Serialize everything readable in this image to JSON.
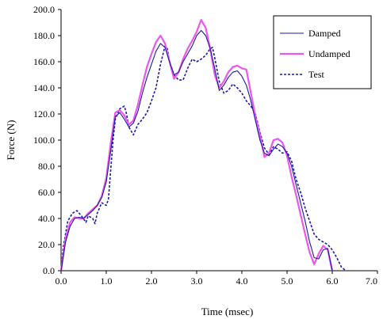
{
  "chart_data": {
    "type": "line",
    "xlabel": "Time (msec)",
    "ylabel": "Force (N)",
    "xlim": [
      0,
      7
    ],
    "ylim": [
      0,
      200
    ],
    "xticks": [
      "0.0",
      "1.0",
      "2.0",
      "3.0",
      "4.0",
      "5.0",
      "6.0",
      "7.0"
    ],
    "yticks": [
      "0.0",
      "20.0",
      "40.0",
      "60.0",
      "80.0",
      "100.0",
      "120.0",
      "140.0",
      "160.0",
      "180.0",
      "200.0"
    ],
    "grid": false,
    "legend": "top-right",
    "series": [
      {
        "name": "Damped",
        "color": "#1a1aa6",
        "style": "solid",
        "points": [
          [
            0,
            0
          ],
          [
            0.1,
            22
          ],
          [
            0.2,
            34
          ],
          [
            0.3,
            40
          ],
          [
            0.4,
            41
          ],
          [
            0.5,
            40
          ],
          [
            0.6,
            43
          ],
          [
            0.7,
            46
          ],
          [
            0.8,
            50
          ],
          [
            0.9,
            56
          ],
          [
            1.0,
            68
          ],
          [
            1.1,
            92
          ],
          [
            1.2,
            118
          ],
          [
            1.3,
            121
          ],
          [
            1.4,
            116
          ],
          [
            1.5,
            110
          ],
          [
            1.6,
            113
          ],
          [
            1.7,
            122
          ],
          [
            1.8,
            136
          ],
          [
            1.9,
            148
          ],
          [
            2.0,
            158
          ],
          [
            2.1,
            168
          ],
          [
            2.2,
            174
          ],
          [
            2.3,
            171
          ],
          [
            2.4,
            160
          ],
          [
            2.5,
            150
          ],
          [
            2.6,
            152
          ],
          [
            2.7,
            160
          ],
          [
            2.8,
            166
          ],
          [
            2.9,
            172
          ],
          [
            3.0,
            180
          ],
          [
            3.1,
            184
          ],
          [
            3.2,
            180
          ],
          [
            3.3,
            170
          ],
          [
            3.4,
            155
          ],
          [
            3.5,
            138
          ],
          [
            3.6,
            142
          ],
          [
            3.7,
            148
          ],
          [
            3.8,
            152
          ],
          [
            3.9,
            153
          ],
          [
            4.0,
            149
          ],
          [
            4.1,
            142
          ],
          [
            4.2,
            130
          ],
          [
            4.3,
            115
          ],
          [
            4.4,
            100
          ],
          [
            4.5,
            90
          ],
          [
            4.6,
            88
          ],
          [
            4.7,
            93
          ],
          [
            4.8,
            97
          ],
          [
            4.9,
            95
          ],
          [
            5.0,
            90
          ],
          [
            5.1,
            80
          ],
          [
            5.2,
            66
          ],
          [
            5.3,
            52
          ],
          [
            5.4,
            38
          ],
          [
            5.5,
            22
          ],
          [
            5.6,
            10
          ],
          [
            5.7,
            9
          ],
          [
            5.8,
            16
          ],
          [
            5.9,
            17
          ],
          [
            6.0,
            0
          ]
        ]
      },
      {
        "name": "Undamped",
        "color": "#ee55ee",
        "style": "solid",
        "points": [
          [
            0,
            0
          ],
          [
            0.1,
            25
          ],
          [
            0.2,
            37
          ],
          [
            0.3,
            41
          ],
          [
            0.4,
            40
          ],
          [
            0.5,
            40
          ],
          [
            0.6,
            44
          ],
          [
            0.7,
            47
          ],
          [
            0.8,
            50
          ],
          [
            0.9,
            57
          ],
          [
            1.0,
            71
          ],
          [
            1.1,
            98
          ],
          [
            1.2,
            121
          ],
          [
            1.3,
            123
          ],
          [
            1.4,
            119
          ],
          [
            1.5,
            112
          ],
          [
            1.6,
            115
          ],
          [
            1.7,
            127
          ],
          [
            1.8,
            142
          ],
          [
            1.9,
            156
          ],
          [
            2.0,
            166
          ],
          [
            2.1,
            175
          ],
          [
            2.2,
            180
          ],
          [
            2.3,
            174
          ],
          [
            2.4,
            160
          ],
          [
            2.5,
            147
          ],
          [
            2.6,
            152
          ],
          [
            2.7,
            162
          ],
          [
            2.8,
            170
          ],
          [
            2.9,
            176
          ],
          [
            3.0,
            183
          ],
          [
            3.1,
            192
          ],
          [
            3.2,
            186
          ],
          [
            3.3,
            170
          ],
          [
            3.4,
            150
          ],
          [
            3.5,
            140
          ],
          [
            3.6,
            145
          ],
          [
            3.7,
            152
          ],
          [
            3.8,
            156
          ],
          [
            3.9,
            157
          ],
          [
            4.0,
            155
          ],
          [
            4.1,
            154
          ],
          [
            4.2,
            136
          ],
          [
            4.3,
            118
          ],
          [
            4.4,
            104
          ],
          [
            4.5,
            87
          ],
          [
            4.6,
            90
          ],
          [
            4.7,
            100
          ],
          [
            4.8,
            101
          ],
          [
            4.9,
            98
          ],
          [
            5.0,
            88
          ],
          [
            5.1,
            72
          ],
          [
            5.2,
            58
          ],
          [
            5.3,
            43
          ],
          [
            5.4,
            28
          ],
          [
            5.5,
            14
          ],
          [
            5.6,
            5
          ],
          [
            5.7,
            13
          ],
          [
            5.8,
            19
          ],
          [
            5.9,
            16
          ],
          [
            6.0,
            0
          ]
        ]
      },
      {
        "name": "Test",
        "color": "#1a1aa6",
        "style": "dashed",
        "points": [
          [
            0,
            0
          ],
          [
            0.05,
            18
          ],
          [
            0.15,
            38
          ],
          [
            0.25,
            44
          ],
          [
            0.35,
            46
          ],
          [
            0.45,
            42
          ],
          [
            0.55,
            37
          ],
          [
            0.6,
            42
          ],
          [
            0.7,
            40
          ],
          [
            0.75,
            36
          ],
          [
            0.8,
            44
          ],
          [
            0.9,
            52
          ],
          [
            1.0,
            50
          ],
          [
            1.05,
            55
          ],
          [
            1.1,
            78
          ],
          [
            1.15,
            100
          ],
          [
            1.2,
            116
          ],
          [
            1.3,
            124
          ],
          [
            1.4,
            126
          ],
          [
            1.45,
            120
          ],
          [
            1.5,
            110
          ],
          [
            1.6,
            104
          ],
          [
            1.7,
            112
          ],
          [
            1.8,
            116
          ],
          [
            1.9,
            121
          ],
          [
            2.0,
            130
          ],
          [
            2.1,
            140
          ],
          [
            2.2,
            158
          ],
          [
            2.3,
            172
          ],
          [
            2.35,
            170
          ],
          [
            2.4,
            160
          ],
          [
            2.5,
            150
          ],
          [
            2.6,
            146
          ],
          [
            2.7,
            146
          ],
          [
            2.8,
            155
          ],
          [
            2.9,
            162
          ],
          [
            3.0,
            160
          ],
          [
            3.1,
            162
          ],
          [
            3.2,
            165
          ],
          [
            3.3,
            170
          ],
          [
            3.35,
            171
          ],
          [
            3.4,
            163
          ],
          [
            3.5,
            145
          ],
          [
            3.6,
            136
          ],
          [
            3.7,
            138
          ],
          [
            3.8,
            143
          ],
          [
            3.9,
            140
          ],
          [
            4.0,
            136
          ],
          [
            4.1,
            130
          ],
          [
            4.2,
            126
          ],
          [
            4.3,
            120
          ],
          [
            4.4,
            106
          ],
          [
            4.5,
            94
          ],
          [
            4.6,
            89
          ],
          [
            4.7,
            95
          ],
          [
            4.8,
            93
          ],
          [
            4.9,
            90
          ],
          [
            5.0,
            91
          ],
          [
            5.1,
            84
          ],
          [
            5.2,
            70
          ],
          [
            5.3,
            60
          ],
          [
            5.4,
            48
          ],
          [
            5.5,
            38
          ],
          [
            5.6,
            28
          ],
          [
            5.7,
            24
          ],
          [
            5.8,
            22
          ],
          [
            5.9,
            20
          ],
          [
            6.0,
            16
          ],
          [
            6.1,
            10
          ],
          [
            6.2,
            3
          ],
          [
            6.3,
            0
          ]
        ]
      }
    ]
  }
}
